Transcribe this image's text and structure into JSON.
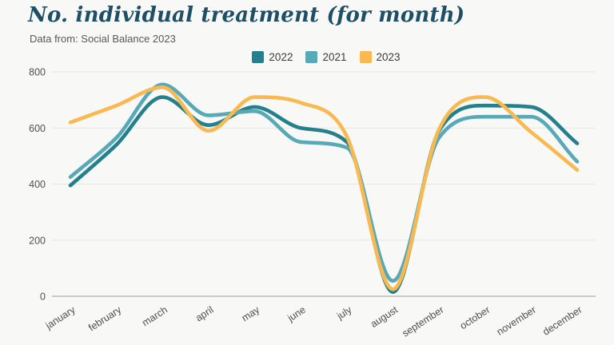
{
  "page": {
    "background": "#f8f8f6"
  },
  "chart_data": {
    "type": "line",
    "title": "No. individual treatment (for month)",
    "subtitle": "Data from: Social Balance 2023",
    "categories": [
      "january",
      "february",
      "march",
      "april",
      "may",
      "june",
      "july",
      "august",
      "september",
      "october",
      "november",
      "december"
    ],
    "series": [
      {
        "name": "2022",
        "color": "#23808c",
        "values": [
          395,
          540,
          710,
          610,
          675,
          600,
          550,
          15,
          590,
          680,
          675,
          545
        ]
      },
      {
        "name": "2021",
        "color": "#57a9b8",
        "values": [
          425,
          565,
          755,
          645,
          660,
          550,
          530,
          55,
          565,
          640,
          640,
          480
        ]
      },
      {
        "name": "2023",
        "color": "#f9b950",
        "values": [
          620,
          680,
          745,
          590,
          710,
          690,
          570,
          25,
          595,
          710,
          585,
          450
        ]
      }
    ],
    "ylabel": "",
    "xlabel": "",
    "ylim": [
      0,
      800
    ],
    "yticks": [
      0,
      200,
      400,
      600,
      800
    ],
    "grid": true,
    "legend_position": "top",
    "colors": {
      "title": "#1f4f66",
      "axis_text": "#4e4e4e",
      "gridline": "#e6e6e3",
      "zeroline": "#9c9c9c",
      "legend_text": "#3c3c3c"
    }
  }
}
